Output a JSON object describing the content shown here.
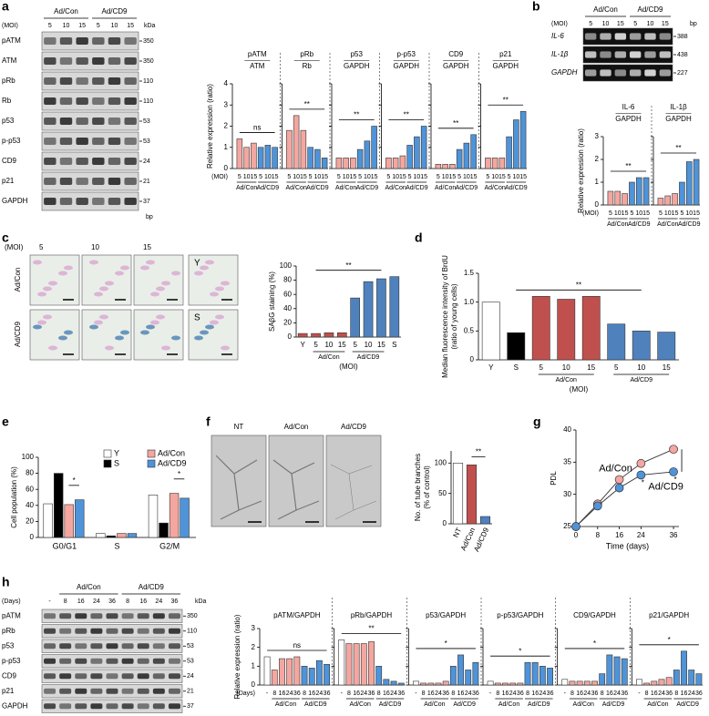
{
  "panel_labels": [
    "a",
    "b",
    "c",
    "d",
    "e",
    "f",
    "g",
    "h"
  ],
  "blots": [
    {
      "groups": [
        "Ad/Con",
        "Ad/CD9"
      ],
      "lane_prefix": "(MOI)",
      "lanes": [
        5,
        10,
        15,
        5,
        10,
        15
      ],
      "unit": "kDa",
      "footer": "bp",
      "rows": [
        {
          "name": "pATM",
          "size": 350
        },
        {
          "name": "ATM",
          "size": 350
        },
        {
          "name": "pRb",
          "size": 110
        },
        {
          "name": "Rb",
          "size": 110
        },
        {
          "name": "p53",
          "size": 53
        },
        {
          "name": "p-p53",
          "size": 53
        },
        {
          "name": "CD9",
          "size": 24
        },
        {
          "name": "p21",
          "size": 21
        },
        {
          "name": "GAPDH",
          "size": 37
        }
      ]
    },
    {
      "groups": [
        "Ad/Con",
        "Ad/CD9"
      ],
      "lane_prefix": "(MOI)",
      "lanes": [
        5,
        10,
        15,
        5,
        10,
        15
      ],
      "unit": "bp",
      "rows": [
        {
          "name": "IL-6",
          "size": 388
        },
        {
          "name": "IL-1β",
          "size": 438
        },
        {
          "name": "GAPDH",
          "size": 227
        }
      ]
    },
    {
      "groups": [
        "Ad/Con",
        "Ad/CD9"
      ],
      "lane_prefix": "(Days)",
      "lanes": [
        "-",
        8,
        16,
        24,
        36,
        8,
        16,
        24,
        36
      ],
      "unit": "kDa",
      "rows": [
        {
          "name": "pATM",
          "size": 350
        },
        {
          "name": "pRb",
          "size": 110
        },
        {
          "name": "p53",
          "size": 53
        },
        {
          "name": "p-p53",
          "size": 53
        },
        {
          "name": "CD9",
          "size": 24
        },
        {
          "name": "p21",
          "size": 21
        },
        {
          "name": "GAPDH",
          "size": 37
        }
      ]
    }
  ],
  "micrographs": [
    {
      "col_prefix": "(MOI)",
      "col_labels": [
        5,
        10,
        15
      ],
      "row_labels": [
        "Ad/Con",
        "Ad/CD9"
      ],
      "reference_labels": [
        "Y",
        "S"
      ]
    },
    {
      "labels": [
        "NT",
        "Ad/Con",
        "Ad/CD9"
      ]
    }
  ],
  "chart_data": [
    {
      "type": "multi-bar",
      "ylabel": [
        "Relative expression (ratio)"
      ],
      "ylim": [
        0,
        4
      ],
      "yticks": [
        0,
        1,
        2,
        3,
        4
      ],
      "x_prefix": "(MOI)",
      "categories": [
        5,
        10,
        15,
        5,
        10,
        15
      ],
      "groups": [
        "Ad/Con",
        "Ad/CD9"
      ],
      "colors": [
        "#f4a6a0",
        "#f4a6a0",
        "#f4a6a0",
        "#4f93d8",
        "#4f93d8",
        "#4f93d8"
      ],
      "subplots": [
        {
          "title": [
            "pATM",
            "ATM"
          ],
          "values": [
            1.4,
            1.0,
            1.2,
            1.0,
            1.1,
            1.0
          ],
          "sig": "ns"
        },
        {
          "title": [
            "pRb",
            "Rb"
          ],
          "values": [
            1.8,
            2.5,
            1.8,
            1.0,
            0.9,
            0.5
          ],
          "sig": "**"
        },
        {
          "title": [
            "p53",
            "GAPDH"
          ],
          "values": [
            0.5,
            0.5,
            0.5,
            0.9,
            1.3,
            2.0
          ],
          "sig": "**"
        },
        {
          "title": [
            "p-p53",
            "GAPDH"
          ],
          "values": [
            0.5,
            0.5,
            0.6,
            1.1,
            1.5,
            2.0
          ],
          "sig": "**"
        },
        {
          "title": [
            "CD9",
            "GAPDH"
          ],
          "values": [
            0.2,
            0.2,
            0.2,
            0.9,
            1.2,
            1.6
          ],
          "sig": "**"
        },
        {
          "title": [
            "p21",
            "GAPDH"
          ],
          "values": [
            0.5,
            0.5,
            0.5,
            1.5,
            2.3,
            2.7
          ],
          "sig": "**"
        }
      ]
    },
    {
      "type": "multi-bar",
      "ylabel": [
        "Relative expression (ratio)"
      ],
      "ylim": [
        0,
        3
      ],
      "yticks": [
        0,
        1,
        2,
        3
      ],
      "x_prefix": "(MOI)",
      "categories": [
        5,
        10,
        15,
        5,
        10,
        15
      ],
      "groups": [
        "Ad/Con",
        "Ad/CD9"
      ],
      "colors": [
        "#f4a6a0",
        "#f4a6a0",
        "#f4a6a0",
        "#4f93d8",
        "#4f93d8",
        "#4f93d8"
      ],
      "subplots": [
        {
          "title": [
            "IL-6",
            "GAPDH"
          ],
          "values": [
            0.6,
            0.6,
            0.5,
            1.0,
            1.2,
            1.2
          ],
          "sig": "**"
        },
        {
          "title": [
            "IL-1β",
            "GAPDH"
          ],
          "values": [
            0.3,
            0.4,
            0.5,
            1.0,
            1.9,
            2.0
          ],
          "sig": "**"
        }
      ]
    },
    {
      "type": "bar",
      "ylabel": [
        "SAβG staining (%)"
      ],
      "ylim": [
        0,
        100
      ],
      "yticks": [
        0,
        20,
        40,
        60,
        80,
        100
      ],
      "categories": [
        "Y",
        5,
        10,
        15,
        5,
        10,
        15,
        "S"
      ],
      "values": [
        5,
        5,
        6,
        6,
        55,
        78,
        82,
        85
      ],
      "colors": [
        "#c0504d",
        "#c0504d",
        "#c0504d",
        "#c0504d",
        "#4f81bd",
        "#4f81bd",
        "#4f81bd",
        "#4f81bd"
      ],
      "groups": [
        "Ad/Con",
        "Ad/CD9"
      ],
      "x_note": "(MOI)",
      "sig": "**"
    },
    {
      "type": "bar",
      "ylabel": [
        "Median fluorescence intensity of BrdU",
        "(ratio of young cells)"
      ],
      "ylim": [
        0,
        1.5
      ],
      "yticks": [
        0,
        0.5,
        {
          "value": 1,
          "label": "1.0"
        },
        1.5
      ],
      "categories": [
        "Y",
        "S",
        5,
        10,
        15,
        5,
        10,
        15
      ],
      "values": [
        1.0,
        0.47,
        1.1,
        1.05,
        1.1,
        0.62,
        0.5,
        0.48
      ],
      "colors": [
        "#ffffff",
        "#000000",
        "#c0504d",
        "#c0504d",
        "#c0504d",
        "#4f81bd",
        "#4f81bd",
        "#4f81bd"
      ],
      "groups": [
        "Ad/Con",
        "Ad/CD9"
      ],
      "x_note": "(MOI)",
      "sig": "**"
    },
    {
      "type": "grouped-bar",
      "ylabel": [
        "Cell population (%)"
      ],
      "ylim": [
        0,
        100
      ],
      "yticks": [
        0,
        20,
        40,
        60,
        80,
        100
      ],
      "categories": [
        "G0/G1",
        "S",
        "G2/M"
      ],
      "series": [
        {
          "name": "Y",
          "color": "#ffffff",
          "values": [
            42,
            5,
            53
          ]
        },
        {
          "name": "S",
          "color": "#000000",
          "values": [
            80,
            2,
            18
          ]
        },
        {
          "name": "Ad/Con",
          "color": "#f4a6a0",
          "values": [
            41,
            5,
            55
          ]
        },
        {
          "name": "Ad/CD9",
          "color": "#4f93d8",
          "values": [
            47,
            5,
            49
          ]
        }
      ],
      "annotations": [
        "*",
        "*"
      ]
    },
    {
      "type": "bar",
      "ylabel": [
        "No. of tube branches",
        "(% of control)"
      ],
      "ylim": [
        0,
        120
      ],
      "yticks": [
        0,
        50,
        100
      ],
      "categories": [
        "NT",
        "Ad/Con",
        "Ad/CD9"
      ],
      "values": [
        100,
        97,
        12
      ],
      "colors": [
        "#ffffff",
        "#c0504d",
        "#4f81bd"
      ],
      "sig": "**"
    },
    {
      "type": "line",
      "ylabel": [
        "PDL"
      ],
      "xlabel": "Time (days)",
      "x": [
        0,
        8,
        16,
        24,
        36
      ],
      "xlim": [
        0,
        38
      ],
      "xticks": [
        0,
        8,
        16,
        24,
        36
      ],
      "ylim": [
        25,
        40
      ],
      "yticks": [
        25,
        30,
        35,
        40
      ],
      "series": [
        {
          "name": "Ad/Con",
          "color": "#f4a6a0",
          "values": [
            25,
            28.5,
            32.3,
            34.8,
            37
          ]
        },
        {
          "name": "Ad/CD9",
          "color": "#4f93d8",
          "values": [
            25,
            28.2,
            31,
            33,
            33.5
          ]
        }
      ],
      "annotations": [
        "*",
        "*"
      ]
    },
    {
      "type": "multi-bar",
      "ylabel": [
        "Relative expression (ratio)"
      ],
      "ylim": [
        0,
        3
      ],
      "yticks": [
        0,
        1,
        2,
        3
      ],
      "x_prefix": "(Days)",
      "categories": [
        "-",
        8,
        16,
        24,
        36,
        8,
        16,
        24,
        36
      ],
      "groups": [
        "Ad/Con",
        "Ad/CD9"
      ],
      "colors": [
        "#ffffff",
        "#f4a6a0",
        "#f4a6a0",
        "#f4a6a0",
        "#f4a6a0",
        "#4f93d8",
        "#4f93d8",
        "#4f93d8",
        "#4f93d8"
      ],
      "subplots": [
        {
          "title": [
            "pATM/GAPDH"
          ],
          "values": [
            1.5,
            0.8,
            1.4,
            1.4,
            1.5,
            1.0,
            0.9,
            1.3,
            1.1
          ],
          "sig": "ns"
        },
        {
          "title": [
            "pRb/GAPDH"
          ],
          "values": [
            2.4,
            2.2,
            2.2,
            2.2,
            2.3,
            1.0,
            0.3,
            0.2,
            0.1
          ],
          "sig": "**"
        },
        {
          "title": [
            "p53/GAPDH"
          ],
          "values": [
            0.2,
            0.1,
            0.1,
            0.1,
            0.2,
            1.0,
            1.6,
            0.8,
            1.2
          ],
          "sig": "*"
        },
        {
          "title": [
            "p-p53/GAPDH"
          ],
          "values": [
            0.2,
            0.1,
            0.1,
            0.1,
            0.1,
            1.2,
            1.2,
            1.0,
            0.9
          ],
          "sig": "*"
        },
        {
          "title": [
            "CD9/GAPDH"
          ],
          "values": [
            0.3,
            0.2,
            0.2,
            0.2,
            0.2,
            0.6,
            1.6,
            1.5,
            1.4
          ],
          "sig": "*"
        },
        {
          "title": [
            "p21/GAPDH"
          ],
          "values": [
            0.3,
            0.1,
            0.2,
            0.3,
            0.4,
            0.8,
            1.8,
            0.8,
            0.6
          ],
          "sig": "*"
        }
      ]
    }
  ]
}
